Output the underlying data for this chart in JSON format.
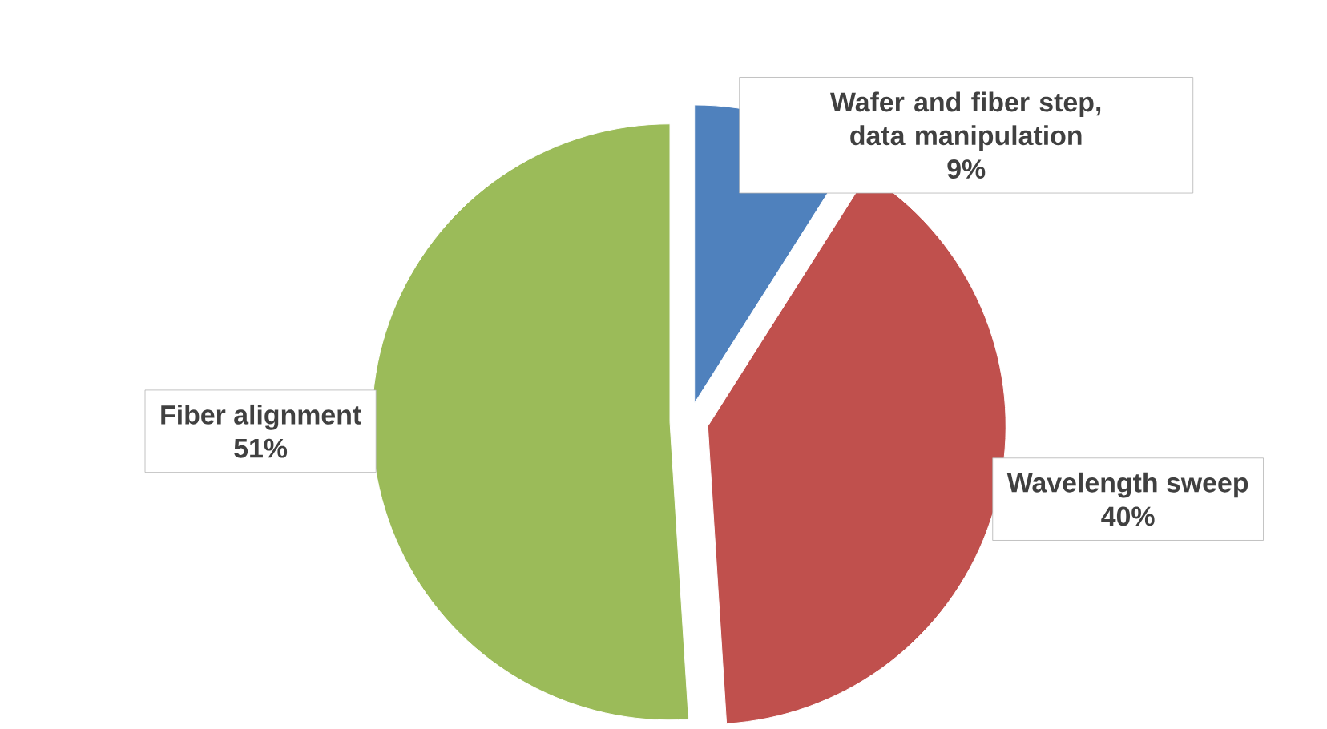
{
  "chart_data": {
    "type": "pie",
    "categories": [
      "Wafer and fiber step, data manipulation",
      "Wavelength sweep",
      "Fiber alignment"
    ],
    "values": [
      9,
      40,
      51
    ],
    "colors": [
      "#4f81bd",
      "#c0504d",
      "#9bbb59"
    ],
    "value_labels": [
      "9%",
      "40%",
      "51%"
    ]
  }
}
